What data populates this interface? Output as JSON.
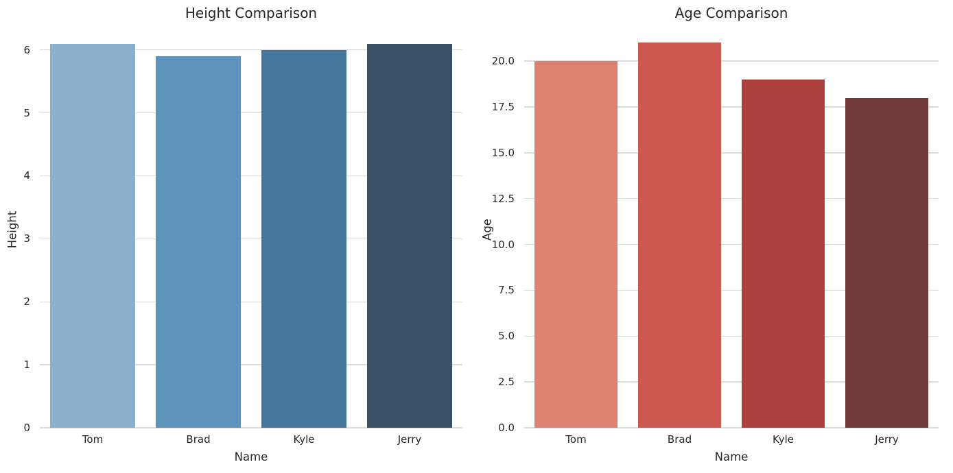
{
  "figure": {
    "background_color": "#ffffff",
    "grid_color": "#dcdcdc",
    "text_color": "#262626"
  },
  "chart_data": [
    {
      "type": "bar",
      "title": "Height Comparison",
      "xlabel": "Name",
      "ylabel": "Height",
      "categories": [
        "Tom",
        "Brad",
        "Kyle",
        "Jerry"
      ],
      "values": [
        6.1,
        5.9,
        6.0,
        6.1
      ],
      "bar_colors": [
        "#8bb0cd",
        "#5e93bc",
        "#45769b",
        "#3b5266"
      ],
      "ylim": [
        0,
        6.28
      ],
      "yticks": [
        {
          "v": 0,
          "label": "0"
        },
        {
          "v": 1,
          "label": "1"
        },
        {
          "v": 2,
          "label": "2"
        },
        {
          "v": 3,
          "label": "3"
        },
        {
          "v": 4,
          "label": "4"
        },
        {
          "v": 5,
          "label": "5"
        },
        {
          "v": 6,
          "label": "6"
        }
      ],
      "grid": true,
      "legend": "none",
      "bar_width_fraction": 0.8
    },
    {
      "type": "bar",
      "title": "Age Comparison",
      "xlabel": "Name",
      "ylabel": "Age",
      "categories": [
        "Tom",
        "Brad",
        "Kyle",
        "Jerry"
      ],
      "values": [
        20,
        21,
        19,
        18
      ],
      "bar_colors": [
        "#dd8171",
        "#cc594f",
        "#ac413d",
        "#703a38"
      ],
      "ylim": [
        0,
        21.57
      ],
      "yticks": [
        {
          "v": 0,
          "label": "0.0"
        },
        {
          "v": 2.5,
          "label": "2.5"
        },
        {
          "v": 5,
          "label": "5.0"
        },
        {
          "v": 7.5,
          "label": "7.5"
        },
        {
          "v": 10,
          "label": "10.0"
        },
        {
          "v": 12.5,
          "label": "12.5"
        },
        {
          "v": 15,
          "label": "15.0"
        },
        {
          "v": 17.5,
          "label": "17.5"
        },
        {
          "v": 20,
          "label": "20.0"
        }
      ],
      "grid": true,
      "legend": "none",
      "bar_width_fraction": 0.8
    }
  ]
}
